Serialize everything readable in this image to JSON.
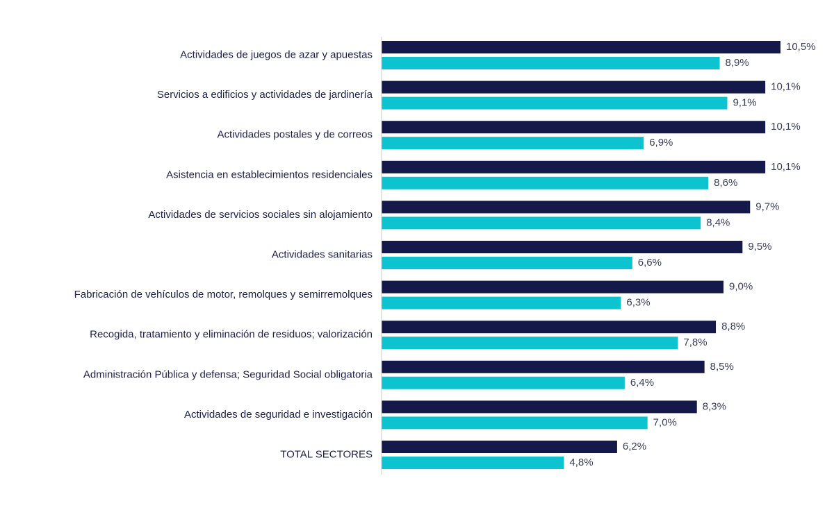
{
  "chart_data": {
    "type": "bar",
    "orientation": "horizontal",
    "categories": [
      "Actividades de juegos de azar y apuestas",
      "Servicios a edificios y actividades de jardinería",
      "Actividades postales y de correos",
      "Asistencia en establecimientos residenciales",
      "Actividades de servicios sociales sin alojamiento",
      "Actividades sanitarias",
      "Fabricación de vehículos de motor, remolques y semirremolques",
      "Recogida, tratamiento y eliminación de residuos; valorización",
      "Administración Pública y defensa; Seguridad Social obligatoria",
      "Actividades de seguridad e investigación",
      "TOTAL SECTORES"
    ],
    "series": [
      {
        "color": "#15194a",
        "values": [
          10.5,
          10.1,
          10.1,
          10.1,
          9.7,
          9.5,
          9.0,
          8.8,
          8.5,
          8.3,
          6.2
        ],
        "labels": [
          "10,5%",
          "10,1%",
          "10,1%",
          "10,1%",
          "9,7%",
          "9,5%",
          "9,0%",
          "8,8%",
          "8,5%",
          "8,3%",
          "6,2%"
        ]
      },
      {
        "color": "#0cc3cf",
        "values": [
          8.9,
          9.1,
          6.9,
          8.6,
          8.4,
          6.6,
          6.3,
          7.8,
          6.4,
          7.0,
          4.8
        ],
        "labels": [
          "8,9%",
          "9,1%",
          "6,9%",
          "8,6%",
          "8,4%",
          "6,6%",
          "6,3%",
          "7,8%",
          "6,4%",
          "7,0%",
          "4,8%"
        ]
      }
    ],
    "xlim": [
      0,
      10.5
    ],
    "grid": false,
    "axis_line_color": "#c9c9c9"
  }
}
